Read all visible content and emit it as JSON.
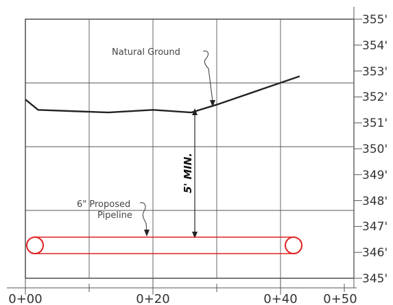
{
  "diagram": {
    "y_axis": {
      "unit": "ft",
      "min": 345,
      "max": 355,
      "tick_labels": [
        "355'",
        "354'",
        "353'",
        "352'",
        "351'",
        "350'",
        "349'",
        "348'",
        "347'",
        "346'",
        "345'"
      ]
    },
    "x_axis": {
      "min": 0,
      "max": 50,
      "tick_labels": [
        "0+00",
        "0+20",
        "0+40",
        "0+50"
      ]
    },
    "ground_profile": {
      "label": "Natural Ground",
      "points": [
        [
          0,
          351.9
        ],
        [
          2,
          351.5
        ],
        [
          13,
          351.4
        ],
        [
          20,
          351.5
        ],
        [
          26,
          351.4
        ],
        [
          30,
          351.7
        ],
        [
          43,
          352.8
        ]
      ]
    },
    "pipeline": {
      "label_line1": "6\" Proposed",
      "label_line2": "Pipeline",
      "start_station": 1.5,
      "end_station": 42.5,
      "elevation": 346.1,
      "color": "#e02020"
    },
    "dimension": {
      "label": "5' MIN.",
      "station": 26.5,
      "from_elevation": 351.4,
      "to_elevation": 346.4
    }
  }
}
